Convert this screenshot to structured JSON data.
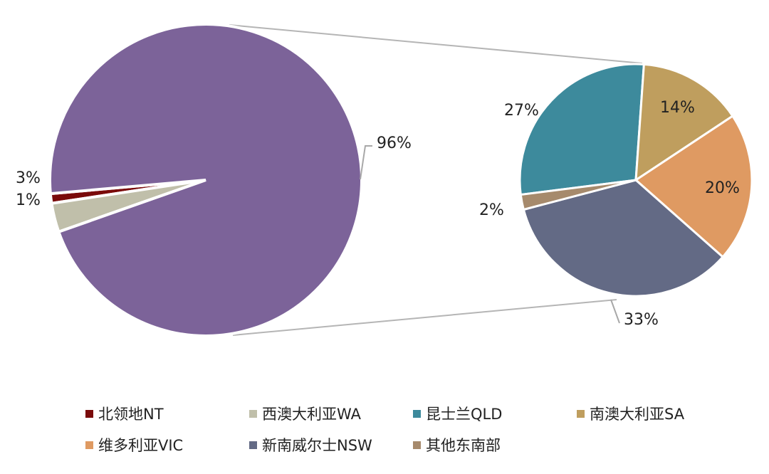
{
  "chart_data": {
    "type": "pie",
    "subtype": "pie-of-pie",
    "main_pie": {
      "slices": [
        {
          "name": "北领地NT",
          "value": 1,
          "label": "1%",
          "color": "#7a0a0a"
        },
        {
          "name": "西澳大利亚WA",
          "value": 3,
          "label": "3%",
          "color": "#c0bfaa"
        },
        {
          "name": "其他东南部",
          "value": 96,
          "label": "96%",
          "color": "#7c6399"
        }
      ]
    },
    "secondary_pie": {
      "slices": [
        {
          "name": "昆士兰QLD",
          "value": 27,
          "label": "27%",
          "color": "#3d8a9c"
        },
        {
          "name": "南澳大利亚SA",
          "value": 14,
          "label": "14%",
          "color": "#bf9e5e"
        },
        {
          "name": "维多利亚VIC",
          "value": 20,
          "label": "20%",
          "color": "#df9a62"
        },
        {
          "name": "新南威尔士NSW",
          "value": 33,
          "label": "33%",
          "color": "#636a85"
        },
        {
          "name": "其他东南部",
          "value": 2,
          "label": "2%",
          "color": "#a68a6c"
        }
      ]
    },
    "legend": {
      "placement": "bottom",
      "items": [
        {
          "name": "北领地NT",
          "color": "#7a0a0a"
        },
        {
          "name": "西澳大利亚WA",
          "color": "#c0bfaa"
        },
        {
          "name": "昆士兰QLD",
          "color": "#3d8a9c"
        },
        {
          "name": "南澳大利亚SA",
          "color": "#bf9e5e"
        },
        {
          "name": "维多利亚VIC",
          "color": "#df9a62"
        },
        {
          "name": "新南威尔士NSW",
          "color": "#636a85"
        },
        {
          "name": "其他东南部",
          "color": "#a68a6c"
        }
      ]
    }
  }
}
